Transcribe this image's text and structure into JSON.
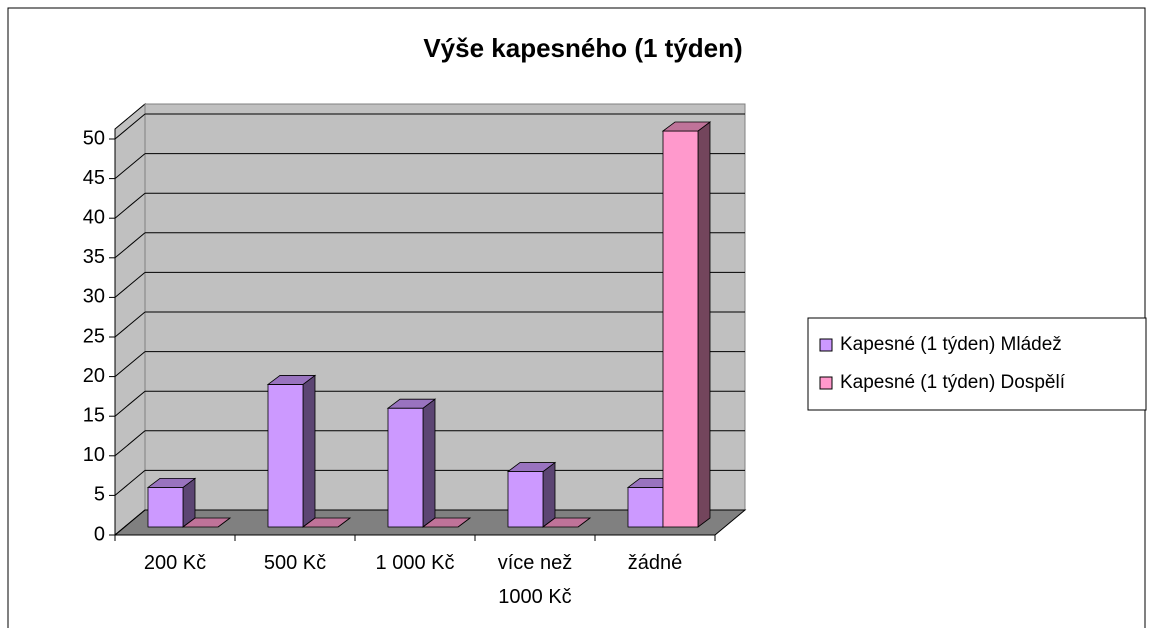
{
  "chart_data": {
    "type": "bar3d",
    "title": "Výše kapesného (1 týden)",
    "categories": [
      "200 Kč",
      "500 Kč",
      "1 000 Kč",
      "více než 1000 Kč",
      "žádné"
    ],
    "series": [
      {
        "name": "Kapesné (1 týden) Mládež",
        "color": "#cc99ff",
        "values": [
          5,
          18,
          15,
          7,
          5
        ]
      },
      {
        "name": "Kapesné (1 týden) Dospělí",
        "color": "#ff99cc",
        "values": [
          0,
          0,
          0,
          0,
          50
        ]
      }
    ],
    "ylim": [
      0,
      50
    ],
    "yticks": [
      0,
      5,
      10,
      15,
      20,
      25,
      30,
      35,
      40,
      45,
      50
    ],
    "grid": true,
    "legend": "right"
  }
}
